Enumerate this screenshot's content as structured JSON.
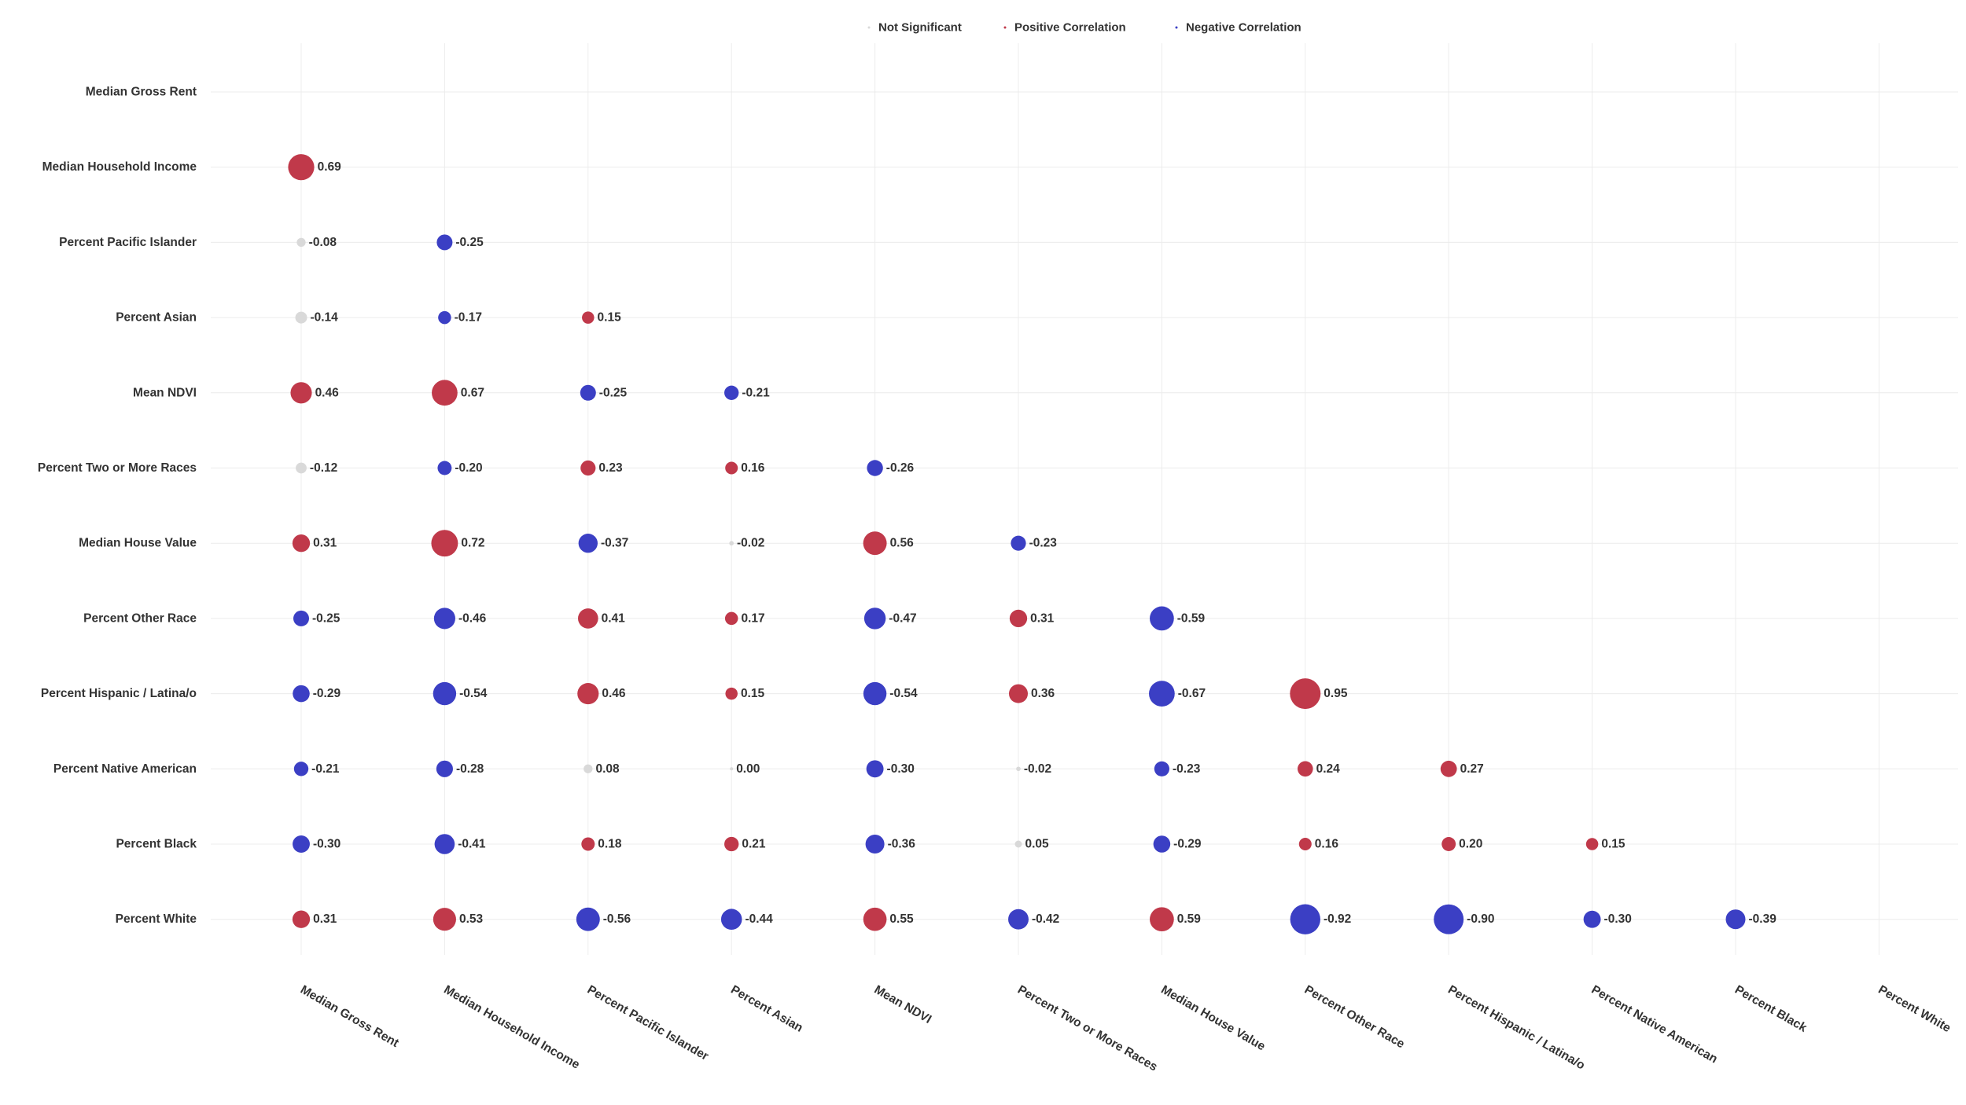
{
  "chart_data": {
    "type": "scatter",
    "subtype": "correlation-bubble-matrix",
    "title": "",
    "variables": [
      "Median Gross Rent",
      "Median Household Income",
      "Percent Pacific Islander",
      "Percent Asian",
      "Mean NDVI",
      "Percent Two or More Races",
      "Median House Value",
      "Percent Other Race",
      "Percent Hispanic / Latina/o",
      "Percent Native American",
      "Percent Black",
      "Percent White"
    ],
    "legend": {
      "position": "top",
      "items": [
        {
          "label": "Not Significant",
          "color": "#d9d9d9"
        },
        {
          "label": "Positive Correlation",
          "color": "#c0394a"
        },
        {
          "label": "Negative Correlation",
          "color": "#3b3fc4"
        }
      ]
    },
    "colors": {
      "positive": "#c0394a",
      "negative": "#3b3fc4",
      "not_significant": "#d9d9d9"
    },
    "grid": true,
    "cells": [
      {
        "row": "Median Household Income",
        "col": "Median Gross Rent",
        "value": 0.69,
        "label": "0.69",
        "sig": "positive"
      },
      {
        "row": "Percent Pacific Islander",
        "col": "Median Gross Rent",
        "value": -0.08,
        "label": "-0.08",
        "sig": "ns"
      },
      {
        "row": "Percent Pacific Islander",
        "col": "Median Household Income",
        "value": -0.25,
        "label": "-0.25",
        "sig": "negative"
      },
      {
        "row": "Percent Asian",
        "col": "Median Gross Rent",
        "value": -0.14,
        "label": "-0.14",
        "sig": "ns"
      },
      {
        "row": "Percent Asian",
        "col": "Median Household Income",
        "value": -0.17,
        "label": "-0.17",
        "sig": "negative"
      },
      {
        "row": "Percent Asian",
        "col": "Percent Pacific Islander",
        "value": 0.15,
        "label": "0.15",
        "sig": "positive"
      },
      {
        "row": "Mean NDVI",
        "col": "Median Gross Rent",
        "value": 0.46,
        "label": "0.46",
        "sig": "positive"
      },
      {
        "row": "Mean NDVI",
        "col": "Median Household Income",
        "value": 0.67,
        "label": "0.67",
        "sig": "positive"
      },
      {
        "row": "Mean NDVI",
        "col": "Percent Pacific Islander",
        "value": -0.25,
        "label": "-0.25",
        "sig": "negative"
      },
      {
        "row": "Mean NDVI",
        "col": "Percent Asian",
        "value": -0.21,
        "label": "-0.21",
        "sig": "negative"
      },
      {
        "row": "Percent Two or More Races",
        "col": "Median Gross Rent",
        "value": -0.12,
        "label": "-0.12",
        "sig": "ns"
      },
      {
        "row": "Percent Two or More Races",
        "col": "Median Household Income",
        "value": -0.2,
        "label": "-0.20",
        "sig": "negative"
      },
      {
        "row": "Percent Two or More Races",
        "col": "Percent Pacific Islander",
        "value": 0.23,
        "label": "0.23",
        "sig": "positive"
      },
      {
        "row": "Percent Two or More Races",
        "col": "Percent Asian",
        "value": 0.16,
        "label": "0.16",
        "sig": "positive"
      },
      {
        "row": "Percent Two or More Races",
        "col": "Mean NDVI",
        "value": -0.26,
        "label": "-0.26",
        "sig": "negative"
      },
      {
        "row": "Median House Value",
        "col": "Median Gross Rent",
        "value": 0.31,
        "label": "0.31",
        "sig": "positive"
      },
      {
        "row": "Median House Value",
        "col": "Median Household Income",
        "value": 0.72,
        "label": "0.72",
        "sig": "positive"
      },
      {
        "row": "Median House Value",
        "col": "Percent Pacific Islander",
        "value": -0.37,
        "label": "-0.37",
        "sig": "negative"
      },
      {
        "row": "Median House Value",
        "col": "Percent Asian",
        "value": -0.02,
        "label": "-0.02",
        "sig": "ns"
      },
      {
        "row": "Median House Value",
        "col": "Mean NDVI",
        "value": 0.56,
        "label": "0.56",
        "sig": "positive"
      },
      {
        "row": "Median House Value",
        "col": "Percent Two or More Races",
        "value": -0.23,
        "label": "-0.23",
        "sig": "negative"
      },
      {
        "row": "Percent Other Race",
        "col": "Median Gross Rent",
        "value": -0.25,
        "label": "-0.25",
        "sig": "negative"
      },
      {
        "row": "Percent Other Race",
        "col": "Median Household Income",
        "value": -0.46,
        "label": "-0.46",
        "sig": "negative"
      },
      {
        "row": "Percent Other Race",
        "col": "Percent Pacific Islander",
        "value": 0.41,
        "label": "0.41",
        "sig": "positive"
      },
      {
        "row": "Percent Other Race",
        "col": "Percent Asian",
        "value": 0.17,
        "label": "0.17",
        "sig": "positive"
      },
      {
        "row": "Percent Other Race",
        "col": "Mean NDVI",
        "value": -0.47,
        "label": "-0.47",
        "sig": "negative"
      },
      {
        "row": "Percent Other Race",
        "col": "Percent Two or More Races",
        "value": 0.31,
        "label": "0.31",
        "sig": "positive"
      },
      {
        "row": "Percent Other Race",
        "col": "Median House Value",
        "value": -0.59,
        "label": "-0.59",
        "sig": "negative"
      },
      {
        "row": "Percent Hispanic / Latina/o",
        "col": "Median Gross Rent",
        "value": -0.29,
        "label": "-0.29",
        "sig": "negative"
      },
      {
        "row": "Percent Hispanic / Latina/o",
        "col": "Median Household Income",
        "value": -0.54,
        "label": "-0.54",
        "sig": "negative"
      },
      {
        "row": "Percent Hispanic / Latina/o",
        "col": "Percent Pacific Islander",
        "value": 0.46,
        "label": "0.46",
        "sig": "positive"
      },
      {
        "row": "Percent Hispanic / Latina/o",
        "col": "Percent Asian",
        "value": 0.15,
        "label": "0.15",
        "sig": "positive"
      },
      {
        "row": "Percent Hispanic / Latina/o",
        "col": "Mean NDVI",
        "value": -0.54,
        "label": "-0.54",
        "sig": "negative"
      },
      {
        "row": "Percent Hispanic / Latina/o",
        "col": "Percent Two or More Races",
        "value": 0.36,
        "label": "0.36",
        "sig": "positive"
      },
      {
        "row": "Percent Hispanic / Latina/o",
        "col": "Median House Value",
        "value": -0.67,
        "label": "-0.67",
        "sig": "negative"
      },
      {
        "row": "Percent Hispanic / Latina/o",
        "col": "Percent Other Race",
        "value": 0.95,
        "label": "0.95",
        "sig": "positive"
      },
      {
        "row": "Percent Native American",
        "col": "Median Gross Rent",
        "value": -0.21,
        "label": "-0.21",
        "sig": "negative"
      },
      {
        "row": "Percent Native American",
        "col": "Median Household Income",
        "value": -0.28,
        "label": "-0.28",
        "sig": "negative"
      },
      {
        "row": "Percent Native American",
        "col": "Percent Pacific Islander",
        "value": 0.08,
        "label": "0.08",
        "sig": "ns"
      },
      {
        "row": "Percent Native American",
        "col": "Percent Asian",
        "value": 0.0,
        "label": "0.00",
        "sig": "ns"
      },
      {
        "row": "Percent Native American",
        "col": "Mean NDVI",
        "value": -0.3,
        "label": "-0.30",
        "sig": "negative"
      },
      {
        "row": "Percent Native American",
        "col": "Percent Two or More Races",
        "value": -0.02,
        "label": "-0.02",
        "sig": "ns"
      },
      {
        "row": "Percent Native American",
        "col": "Median House Value",
        "value": -0.23,
        "label": "-0.23",
        "sig": "negative"
      },
      {
        "row": "Percent Native American",
        "col": "Percent Other Race",
        "value": 0.24,
        "label": "0.24",
        "sig": "positive"
      },
      {
        "row": "Percent Native American",
        "col": "Percent Hispanic / Latina/o",
        "value": 0.27,
        "label": "0.27",
        "sig": "positive"
      },
      {
        "row": "Percent Black",
        "col": "Median Gross Rent",
        "value": -0.3,
        "label": "-0.30",
        "sig": "negative"
      },
      {
        "row": "Percent Black",
        "col": "Median Household Income",
        "value": -0.41,
        "label": "-0.41",
        "sig": "negative"
      },
      {
        "row": "Percent Black",
        "col": "Percent Pacific Islander",
        "value": 0.18,
        "label": "0.18",
        "sig": "positive"
      },
      {
        "row": "Percent Black",
        "col": "Percent Asian",
        "value": 0.21,
        "label": "0.21",
        "sig": "positive"
      },
      {
        "row": "Percent Black",
        "col": "Mean NDVI",
        "value": -0.36,
        "label": "-0.36",
        "sig": "negative"
      },
      {
        "row": "Percent Black",
        "col": "Percent Two or More Races",
        "value": 0.05,
        "label": "0.05",
        "sig": "ns"
      },
      {
        "row": "Percent Black",
        "col": "Median House Value",
        "value": -0.29,
        "label": "-0.29",
        "sig": "negative"
      },
      {
        "row": "Percent Black",
        "col": "Percent Other Race",
        "value": 0.16,
        "label": "0.16",
        "sig": "positive"
      },
      {
        "row": "Percent Black",
        "col": "Percent Hispanic / Latina/o",
        "value": 0.2,
        "label": "0.20",
        "sig": "positive"
      },
      {
        "row": "Percent Black",
        "col": "Percent Native American",
        "value": 0.15,
        "label": "0.15",
        "sig": "positive"
      },
      {
        "row": "Percent White",
        "col": "Median Gross Rent",
        "value": 0.31,
        "label": "0.31",
        "sig": "positive"
      },
      {
        "row": "Percent White",
        "col": "Median Household Income",
        "value": 0.53,
        "label": "0.53",
        "sig": "positive"
      },
      {
        "row": "Percent White",
        "col": "Percent Pacific Islander",
        "value": -0.56,
        "label": "-0.56",
        "sig": "negative"
      },
      {
        "row": "Percent White",
        "col": "Percent Asian",
        "value": -0.44,
        "label": "-0.44",
        "sig": "negative"
      },
      {
        "row": "Percent White",
        "col": "Mean NDVI",
        "value": 0.55,
        "label": "0.55",
        "sig": "positive"
      },
      {
        "row": "Percent White",
        "col": "Percent Two or More Races",
        "value": -0.42,
        "label": "-0.42",
        "sig": "negative"
      },
      {
        "row": "Percent White",
        "col": "Median House Value",
        "value": 0.59,
        "label": "0.59",
        "sig": "positive"
      },
      {
        "row": "Percent White",
        "col": "Percent Other Race",
        "value": -0.92,
        "label": "-0.92",
        "sig": "negative"
      },
      {
        "row": "Percent White",
        "col": "Percent Hispanic / Latina/o",
        "value": -0.9,
        "label": "-0.90",
        "sig": "negative"
      },
      {
        "row": "Percent White",
        "col": "Percent Native American",
        "value": -0.3,
        "label": "-0.30",
        "sig": "negative"
      },
      {
        "row": "Percent White",
        "col": "Percent Black",
        "value": -0.39,
        "label": "-0.39",
        "sig": "negative"
      }
    ]
  }
}
